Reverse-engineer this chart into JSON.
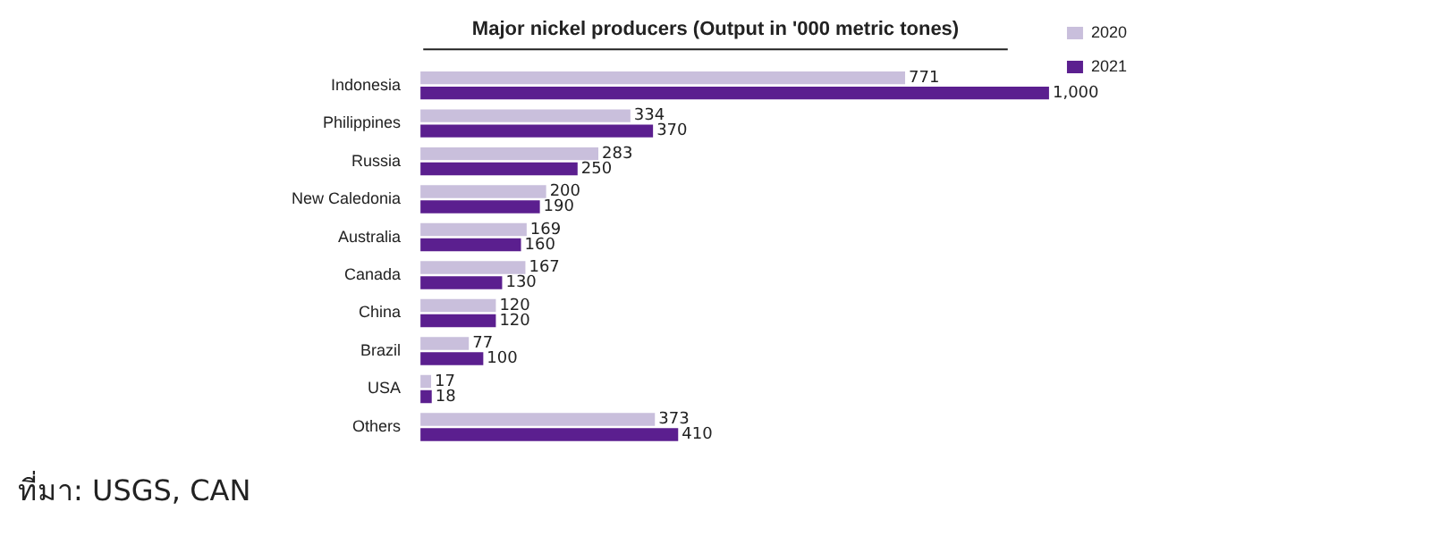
{
  "chart_data": {
    "type": "bar",
    "orientation": "horizontal",
    "title": "Major nickel producers (Output in '000 metric tones)",
    "categories": [
      "Indonesia",
      "Philippines",
      "Russia",
      "New Caledonia",
      "Australia",
      "Canada",
      "China",
      "Brazil",
      "USA",
      "Others"
    ],
    "series": [
      {
        "name": "2020",
        "color": "#c9bfdc",
        "values": [
          771,
          334,
          283,
          200,
          169,
          167,
          120,
          77,
          17,
          373
        ],
        "value_labels": [
          "771",
          "334",
          "283",
          "200",
          "169",
          "167",
          "120",
          "77",
          "17",
          "373"
        ]
      },
      {
        "name": "2021",
        "color": "#5b1f8f",
        "values": [
          1000,
          370,
          250,
          190,
          160,
          130,
          120,
          100,
          18,
          410
        ],
        "value_labels": [
          "1,000",
          "370",
          "250",
          "190",
          "160",
          "130",
          "120",
          "100",
          "18",
          "410"
        ]
      }
    ],
    "legend": "top right",
    "annotations": [
      "ที่มา: USGS, CAN"
    ]
  }
}
